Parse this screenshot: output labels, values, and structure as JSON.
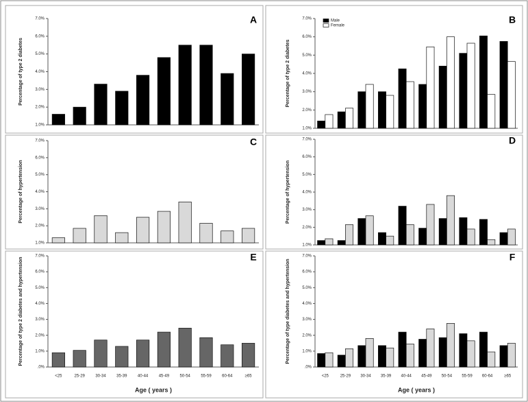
{
  "chart_data": [
    {
      "type": "bar",
      "panel_label": "A",
      "ylabel": "Percentage of type 2 diabetes",
      "categories": [
        null,
        null,
        null,
        null,
        null,
        null,
        null,
        null,
        null,
        null
      ],
      "values": [
        1.6,
        2.0,
        3.3,
        2.9,
        3.8,
        4.8,
        5.5,
        5.5,
        3.9,
        5.0
      ],
      "color": "#000000",
      "ylim": [
        1,
        7
      ],
      "yticks": [
        {
          "value": 1,
          "label": "1.0%"
        },
        {
          "value": 2,
          "label": "2.0%"
        },
        {
          "value": 3,
          "label": "3.0%"
        },
        {
          "value": 4,
          "label": "4.0%"
        },
        {
          "value": 5,
          "label": "5.0%"
        },
        {
          "value": 6,
          "label": "6.0%"
        },
        {
          "value": 7,
          "label": "7.0%"
        }
      ]
    },
    {
      "type": "bar",
      "panel_label": "B",
      "ylabel": "Percentage of type 2 diabetes",
      "categories": [
        null,
        null,
        null,
        null,
        null,
        null,
        null,
        null,
        null,
        null
      ],
      "series": [
        {
          "name": "Male",
          "color": "#000000",
          "values": [
            1.4,
            1.9,
            3.0,
            3.0,
            4.25,
            3.4,
            4.4,
            5.1,
            6.05,
            5.75
          ]
        },
        {
          "name": "Female",
          "color": "#ffffff",
          "values": [
            1.75,
            2.1,
            3.4,
            2.8,
            3.55,
            5.45,
            6.0,
            5.65,
            2.85,
            4.65
          ]
        }
      ],
      "legend": "upper left",
      "ylim": [
        1,
        7
      ],
      "yticks": [
        {
          "value": 1,
          "label": "1.0%"
        },
        {
          "value": 2,
          "label": "2.0%"
        },
        {
          "value": 3,
          "label": "3.0%"
        },
        {
          "value": 4,
          "label": "4.0%"
        },
        {
          "value": 5,
          "label": "5.0%"
        },
        {
          "value": 6,
          "label": "6.0%"
        },
        {
          "value": 7,
          "label": "7.0%"
        }
      ]
    },
    {
      "type": "bar",
      "panel_label": "C",
      "ylabel": "Percentage of hypertension",
      "categories": [
        null,
        null,
        null,
        null,
        null,
        null,
        null,
        null,
        null,
        null
      ],
      "values": [
        1.3,
        1.85,
        2.6,
        1.6,
        2.5,
        2.85,
        3.4,
        2.15,
        1.7,
        1.85
      ],
      "color": "#d9d9d9",
      "ylim": [
        1,
        7
      ],
      "yticks": [
        {
          "value": 1,
          "label": "1.0%"
        },
        {
          "value": 2,
          "label": "2.0%"
        },
        {
          "value": 3,
          "label": "3.0%"
        },
        {
          "value": 4,
          "label": "4.0%"
        },
        {
          "value": 5,
          "label": "5.0%"
        },
        {
          "value": 6,
          "label": "6.0%"
        },
        {
          "value": 7,
          "label": "7.0%"
        }
      ]
    },
    {
      "type": "bar",
      "panel_label": "D",
      "ylabel": "Percentage of hypertension",
      "categories": [
        null,
        null,
        null,
        null,
        null,
        null,
        null,
        null,
        null,
        null
      ],
      "series": [
        {
          "color": "#000000",
          "values": [
            1.25,
            1.25,
            2.5,
            1.7,
            3.2,
            1.95,
            2.5,
            2.55,
            2.45,
            1.7
          ]
        },
        {
          "color": "#d9d9d9",
          "values": [
            1.35,
            2.15,
            2.65,
            1.5,
            2.15,
            3.3,
            3.8,
            1.9,
            1.3,
            1.9
          ]
        }
      ],
      "ylim": [
        1,
        7
      ],
      "yticks": [
        {
          "value": 1,
          "label": "1.0%"
        },
        {
          "value": 2,
          "label": "2.0%"
        },
        {
          "value": 3,
          "label": "3.0%"
        },
        {
          "value": 4,
          "label": "4.0%"
        },
        {
          "value": 5,
          "label": "5.0%"
        },
        {
          "value": 6,
          "label": "6.0%"
        },
        {
          "value": 7,
          "label": "7.0%"
        }
      ]
    },
    {
      "type": "bar",
      "panel_label": "E",
      "ylabel": "Percentage of type 2 diabetes and hypertension",
      "xlabel": "Age ( years )",
      "categories": [
        "<25",
        "25-29",
        "30-34",
        "35-39",
        "40-44",
        "45-49",
        "50-54",
        "55-59",
        "60-64",
        "≥65"
      ],
      "values": [
        0.9,
        1.05,
        1.7,
        1.3,
        1.7,
        2.2,
        2.45,
        1.85,
        1.4,
        1.5
      ],
      "color": "#666666",
      "ylim": [
        0,
        7
      ],
      "yticks": [
        {
          "value": 0,
          "label": ".0%"
        },
        {
          "value": 1,
          "label": "1.0%"
        },
        {
          "value": 2,
          "label": "2.0%"
        },
        {
          "value": 3,
          "label": "3.0%"
        },
        {
          "value": 4,
          "label": "4.0%"
        },
        {
          "value": 5,
          "label": "5.0%"
        },
        {
          "value": 6,
          "label": "6.0%"
        },
        {
          "value": 7,
          "label": "7.0%"
        }
      ]
    },
    {
      "type": "bar",
      "panel_label": "F",
      "ylabel": "Percentage of type diabetes and hypertension",
      "xlabel": "Age ( years )",
      "categories": [
        "<25",
        "25-29",
        "30-34",
        "35-39",
        "40-44",
        "45-49",
        "50-54",
        "55-59",
        "60-64",
        "≥65"
      ],
      "series": [
        {
          "color": "#000000",
          "values": [
            0.85,
            0.75,
            1.35,
            1.35,
            2.2,
            1.75,
            1.85,
            2.1,
            2.2,
            1.35
          ]
        },
        {
          "color": "#d9d9d9",
          "values": [
            0.9,
            1.15,
            1.8,
            1.2,
            1.45,
            2.4,
            2.75,
            1.65,
            0.95,
            1.5
          ]
        }
      ],
      "ylim": [
        0,
        7
      ],
      "yticks": [
        {
          "value": 0,
          "label": ".0%"
        },
        {
          "value": 1,
          "label": "1.0%"
        },
        {
          "value": 2,
          "label": "2.0%"
        },
        {
          "value": 3,
          "label": "3.0%"
        },
        {
          "value": 4,
          "label": "4.0%"
        },
        {
          "value": 5,
          "label": "5.0%"
        },
        {
          "value": 6,
          "label": "6.0%"
        },
        {
          "value": 7,
          "label": "7.0%"
        }
      ]
    }
  ]
}
